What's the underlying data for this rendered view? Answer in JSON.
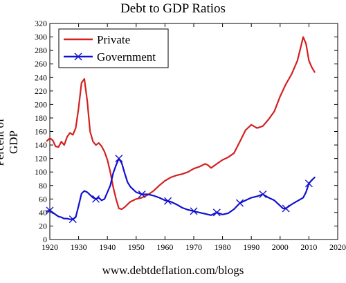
{
  "chart_data": {
    "type": "line",
    "title": "Debt to GDP Ratios",
    "xlabel": "",
    "ylabel": "Percent of GDP",
    "footer": "www.debtdeflation.com/blogs",
    "xlim": [
      1920,
      2020
    ],
    "ylim": [
      0,
      320
    ],
    "x_ticks": [
      1920,
      1930,
      1940,
      1950,
      1960,
      1970,
      1980,
      1990,
      2000,
      2010,
      2020
    ],
    "y_ticks": [
      0,
      20,
      40,
      60,
      80,
      100,
      120,
      140,
      160,
      180,
      200,
      220,
      240,
      260,
      280,
      300,
      320
    ],
    "grid": false,
    "legend_position": "top-left",
    "series": [
      {
        "name": "Private",
        "color": "#d42020",
        "marker": "none",
        "x": [
          1919,
          1920,
          1921,
          1922,
          1923,
          1924,
          1925,
          1926,
          1927,
          1928,
          1929,
          1930,
          1931,
          1932,
          1933,
          1934,
          1935,
          1936,
          1937,
          1938,
          1939,
          1940,
          1941,
          1942,
          1943,
          1944,
          1945,
          1946,
          1947,
          1948,
          1950,
          1952,
          1954,
          1956,
          1958,
          1960,
          1962,
          1964,
          1966,
          1968,
          1970,
          1972,
          1974,
          1975,
          1976,
          1978,
          1980,
          1982,
          1984,
          1986,
          1988,
          1990,
          1992,
          1994,
          1996,
          1998,
          2000,
          2002,
          2004,
          2006,
          2007,
          2008,
          2009,
          2010,
          2011,
          2012
        ],
        "values": [
          146,
          150,
          147,
          138,
          137,
          145,
          140,
          152,
          158,
          155,
          165,
          195,
          232,
          238,
          205,
          160,
          145,
          140,
          143,
          138,
          130,
          118,
          100,
          78,
          60,
          46,
          45,
          48,
          52,
          56,
          60,
          62,
          66,
          72,
          80,
          87,
          92,
          95,
          97,
          100,
          105,
          108,
          112,
          110,
          106,
          112,
          118,
          122,
          128,
          145,
          162,
          170,
          165,
          168,
          178,
          190,
          212,
          230,
          245,
          265,
          282,
          300,
          290,
          265,
          255,
          248
        ]
      },
      {
        "name": "Government",
        "color": "#1010d0",
        "marker": "x",
        "marker_x": [
          1920,
          1928,
          1936,
          1944,
          1952,
          1961,
          1970,
          1978,
          1986,
          1994,
          2002,
          2010
        ],
        "x": [
          1919,
          1920,
          1921,
          1922,
          1923,
          1924,
          1925,
          1926,
          1927,
          1928,
          1929,
          1930,
          1931,
          1932,
          1933,
          1934,
          1935,
          1936,
          1937,
          1938,
          1939,
          1940,
          1941,
          1942,
          1943,
          1944,
          1945,
          1946,
          1947,
          1948,
          1949,
          1950,
          1952,
          1954,
          1956,
          1958,
          1960,
          1962,
          1964,
          1966,
          1968,
          1970,
          1972,
          1974,
          1976,
          1978,
          1980,
          1982,
          1984,
          1986,
          1988,
          1990,
          1992,
          1994,
          1996,
          1998,
          2000,
          2001,
          2002,
          2004,
          2006,
          2008,
          2009,
          2010,
          2011,
          2012
        ],
        "values": [
          42,
          43,
          40,
          37,
          34,
          33,
          31,
          31,
          30,
          30,
          33,
          50,
          68,
          72,
          70,
          66,
          62,
          60,
          62,
          58,
          60,
          70,
          80,
          98,
          110,
          120,
          113,
          98,
          85,
          78,
          74,
          70,
          67,
          67,
          65,
          62,
          58,
          56,
          52,
          47,
          44,
          42,
          40,
          38,
          36,
          40,
          37,
          39,
          45,
          54,
          58,
          62,
          64,
          67,
          62,
          58,
          50,
          46,
          46,
          52,
          57,
          62,
          70,
          83,
          88,
          92
        ]
      }
    ]
  }
}
